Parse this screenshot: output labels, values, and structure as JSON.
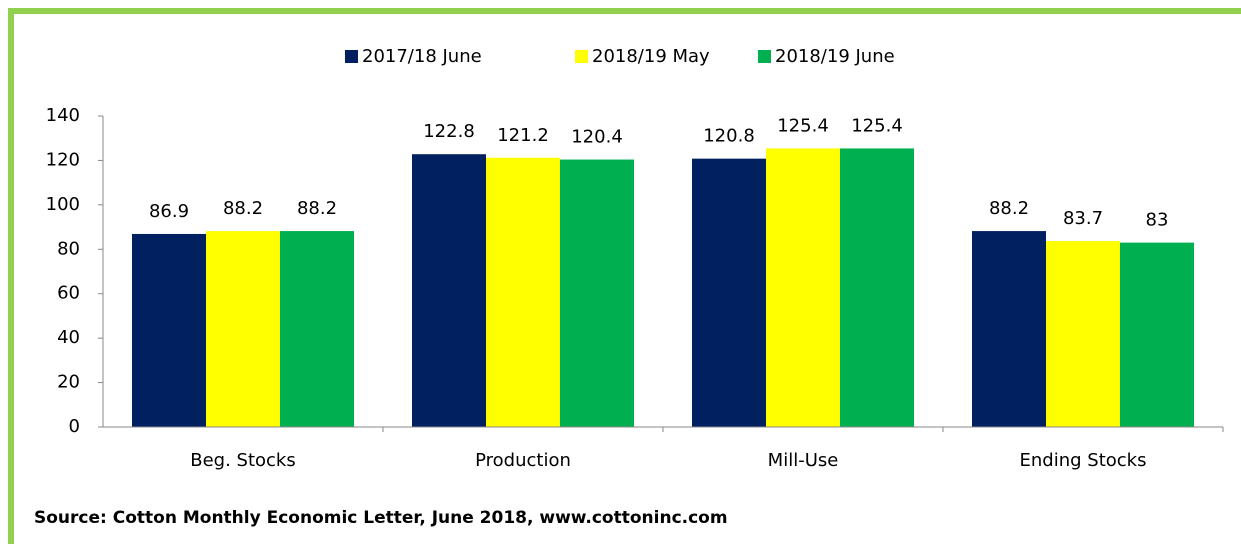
{
  "chart_data": {
    "type": "bar",
    "categories": [
      "Beg. Stocks",
      "Production",
      "Mill-Use",
      "Ending Stocks"
    ],
    "series": [
      {
        "name": "2017/18 June",
        "color": "#002060",
        "values": [
          86.9,
          122.8,
          120.8,
          88.2
        ]
      },
      {
        "name": "2018/19 May",
        "color": "#ffff00",
        "values": [
          88.2,
          121.2,
          125.4,
          83.7
        ]
      },
      {
        "name": "2018/19 June",
        "color": "#00b050",
        "values": [
          88.2,
          120.4,
          125.4,
          83
        ]
      }
    ],
    "ylim": [
      0,
      140
    ],
    "yticks": [
      0,
      20,
      40,
      60,
      80,
      100,
      120,
      140
    ],
    "grid": false,
    "legend": "top",
    "source": "Source: Cotton Monthly Economic Letter, June 2018, www.cottoninc.com"
  }
}
